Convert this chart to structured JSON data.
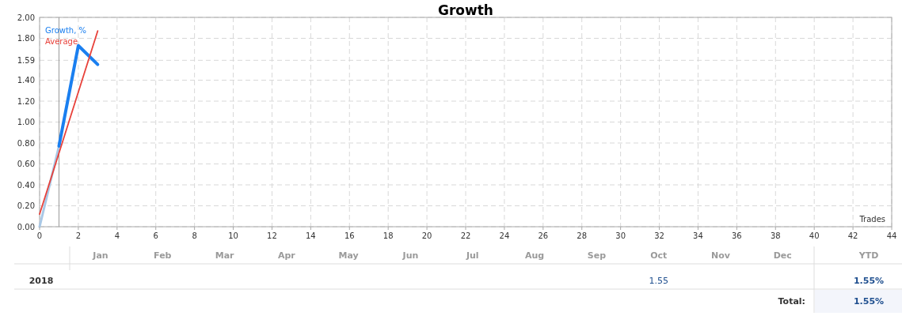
{
  "chart_data": {
    "type": "line",
    "title": "Growth",
    "xlabel": "Trades",
    "xlim": [
      0,
      44
    ],
    "xticks": [
      0,
      2,
      4,
      6,
      8,
      10,
      12,
      14,
      16,
      18,
      20,
      22,
      24,
      26,
      28,
      30,
      32,
      34,
      36,
      38,
      40,
      42,
      44
    ],
    "ylim": [
      0,
      2
    ],
    "yticks": [
      {
        "value": 0,
        "label": "0.00"
      },
      {
        "value": 0.2,
        "label": "0.20"
      },
      {
        "value": 0.4,
        "label": "0.40"
      },
      {
        "value": 0.6,
        "label": "0.60"
      },
      {
        "value": 0.8,
        "label": "0.80"
      },
      {
        "value": 1,
        "label": "1.00"
      },
      {
        "value": 1.2,
        "label": "1.20"
      },
      {
        "value": 1.4,
        "label": "1.40"
      },
      {
        "value": 1.59,
        "label": "1.59"
      },
      {
        "value": 1.8,
        "label": "1.80"
      },
      {
        "value": 2,
        "label": "2.00"
      }
    ],
    "grid": true,
    "legend": "top left",
    "ref_lines": [
      {
        "axis": "x",
        "value": 1,
        "color": "#999999"
      }
    ],
    "series": [
      {
        "color": "#a9c8e6",
        "x": [
          0,
          1
        ],
        "values": [
          0,
          0.77
        ]
      },
      {
        "name": "Growth, %",
        "color": "#1a7ff0",
        "x": [
          1,
          2,
          3
        ],
        "values": [
          0.77,
          1.73,
          1.55
        ]
      },
      {
        "name": "Average",
        "color": "#e8413a",
        "x": [
          0,
          3
        ],
        "values": [
          0.12,
          1.87
        ]
      }
    ],
    "annotations": [
      "Jan",
      "Feb",
      "Mar",
      "Apr",
      "May",
      "Jun",
      "Jul",
      "Aug",
      "Sep",
      "Oct",
      "Nov",
      "Dec",
      "YTD",
      "2018",
      "1.55",
      "1.55%",
      "Total:",
      "1.55%"
    ]
  }
}
